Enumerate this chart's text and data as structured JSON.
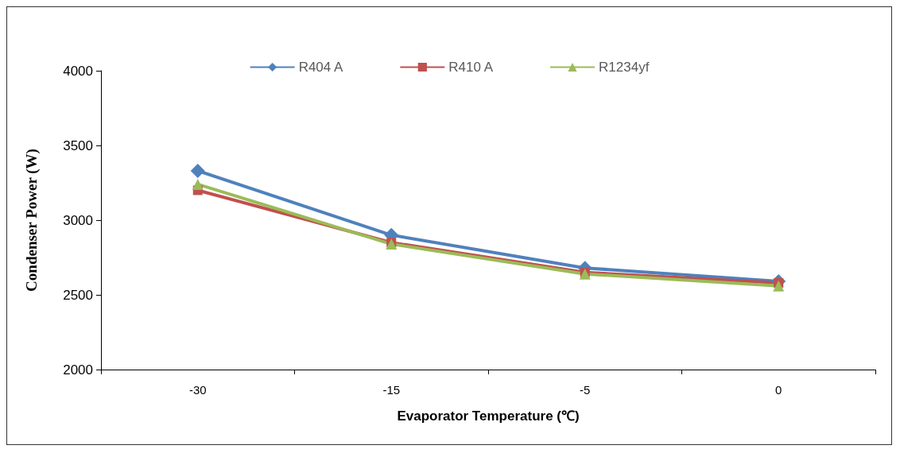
{
  "chart_data": {
    "type": "line",
    "xlabel": "Evaporator Temperature (℃)",
    "ylabel": "Condenser Power (W)",
    "categories": [
      "-30",
      "-15",
      "-5",
      "0"
    ],
    "series": [
      {
        "name": "R404 A",
        "color": "#4f81bd",
        "marker": "diamond",
        "values": [
          3330,
          2900,
          2680,
          2590
        ]
      },
      {
        "name": "R410 A",
        "color": "#c0504d",
        "marker": "square",
        "values": [
          3200,
          2850,
          2650,
          2580
        ]
      },
      {
        "name": "R1234yf",
        "color": "#9bbb59",
        "marker": "triangle",
        "values": [
          3240,
          2840,
          2640,
          2560
        ]
      }
    ],
    "ylim": [
      2000,
      4000
    ],
    "yticks": [
      2000,
      2500,
      3000,
      3500,
      4000
    ],
    "grid": false,
    "legend": "top",
    "line_style": "solid"
  }
}
